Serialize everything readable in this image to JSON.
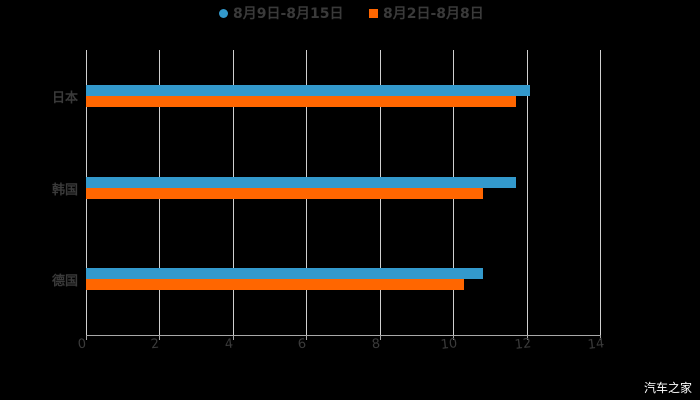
{
  "chart_data": {
    "type": "bar",
    "orientation": "horizontal",
    "title": "",
    "categories": [
      "日本",
      "韩国",
      "德国"
    ],
    "series": [
      {
        "name": "8月9日-8月15日",
        "color": "#3399cc",
        "values": [
          12.1,
          11.7,
          10.8
        ]
      },
      {
        "name": "8月2日-8月8日",
        "color": "#ff6600",
        "values": [
          11.7,
          10.8,
          10.3
        ]
      }
    ],
    "xlabel": "",
    "ylabel": "",
    "xlim": [
      0,
      14
    ],
    "xticks": [
      "0",
      "2",
      "4",
      "6",
      "8",
      "10",
      "12",
      "14"
    ],
    "grid": true,
    "legend_position": "top"
  },
  "legend": {
    "items": [
      {
        "label": "8月9日-8月15日",
        "color": "#3399cc",
        "marker": "circle"
      },
      {
        "label": "8月2日-8月8日",
        "color": "#ff6600",
        "marker": "square"
      }
    ]
  },
  "watermark": "汽车之家"
}
